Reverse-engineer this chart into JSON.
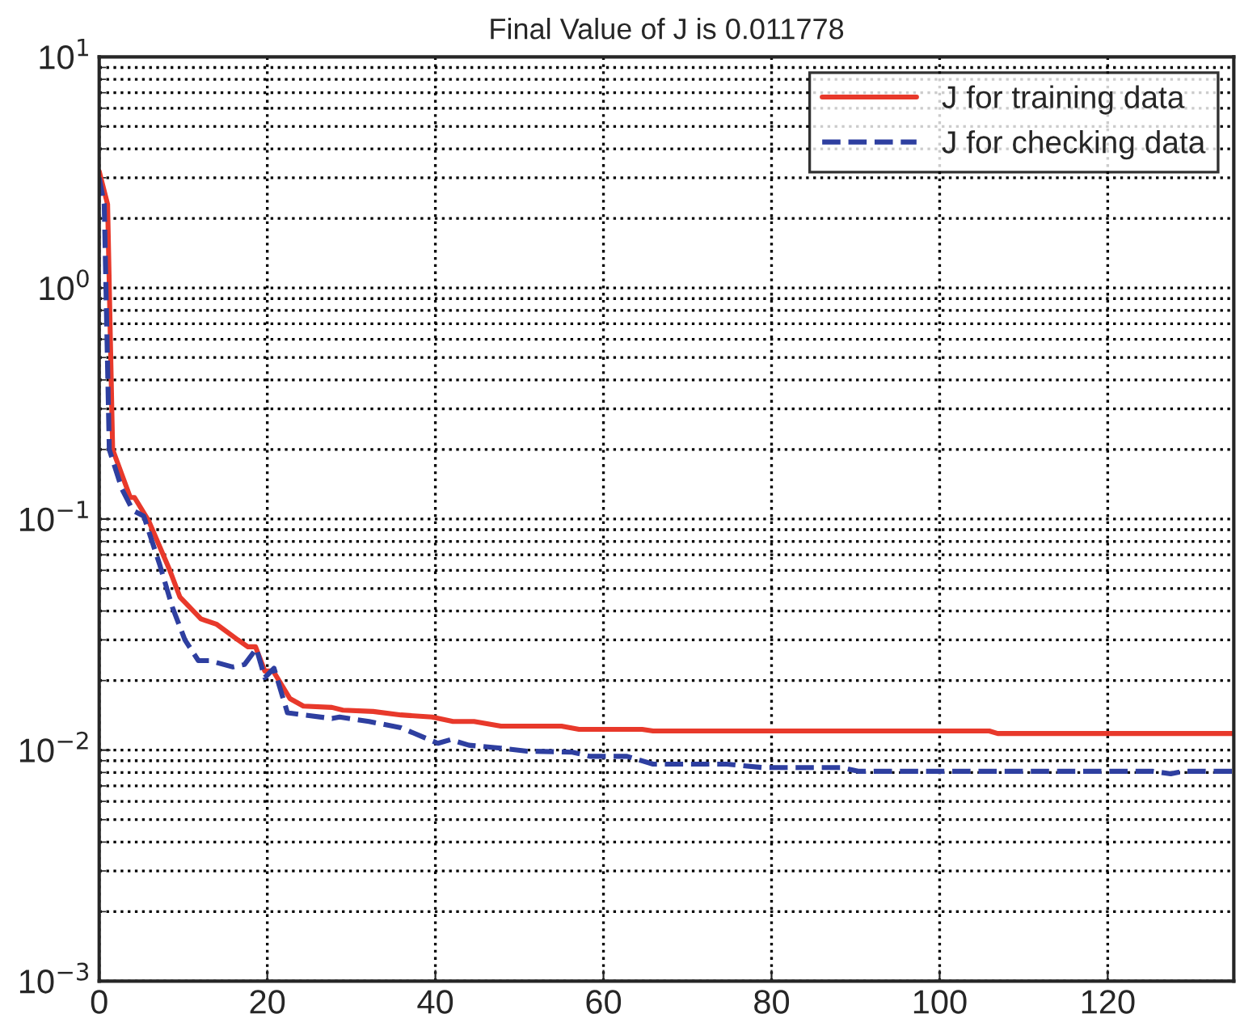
{
  "chart_data": {
    "type": "line",
    "title": "Final Value of J is 0.011778",
    "log": "y",
    "grid": true,
    "legend": "top right",
    "xlim": [
      0,
      135
    ],
    "xticks": [
      0,
      20,
      40,
      60,
      80,
      100,
      120
    ],
    "ylim": [
      0.001,
      10
    ],
    "yticks": [
      {
        "value": 0.001,
        "label": "10$^{−3}$"
      },
      {
        "value": 0.01,
        "label": "10$^{−2}$"
      },
      {
        "value": 0.1,
        "label": "10$^{−1}$"
      },
      {
        "value": 1,
        "label": "10$^{0}$"
      },
      {
        "value": 10,
        "label": "10$^{1}$"
      }
    ],
    "series": [
      {
        "name": "J for training data",
        "color": "#e8392b",
        "line_style": "solid",
        "x": [
          0,
          1,
          1.6,
          3.7,
          4.2,
          5.9,
          8.4,
          9.6,
          12.1,
          14,
          16.5,
          17.7,
          18.6,
          19.7,
          20.7,
          22.7,
          24.3,
          27.7,
          29,
          32.6,
          35.9,
          39.6,
          42.1,
          44.6,
          47.8,
          55,
          57.1,
          64.6,
          65.9,
          105.9,
          106.9,
          135
        ],
        "values": [
          3.2,
          2.3,
          0.2,
          0.124,
          0.124,
          0.098,
          0.06,
          0.046,
          0.037,
          0.035,
          0.03,
          0.028,
          0.028,
          0.022,
          0.022,
          0.0167,
          0.0155,
          0.0153,
          0.0149,
          0.0147,
          0.0142,
          0.0139,
          0.0133,
          0.0133,
          0.0127,
          0.0127,
          0.0123,
          0.0123,
          0.0121,
          0.0121,
          0.0118,
          0.0118
        ]
      },
      {
        "name": "J for checking data",
        "color": "#2e3fa0",
        "line_style": "dashed",
        "x": [
          0,
          0.6,
          1.2,
          2.7,
          4.0,
          5.3,
          7.2,
          8.7,
          10.2,
          11.8,
          13.1,
          15.9,
          17.3,
          18.7,
          19.7,
          20.8,
          22.4,
          27.7,
          28.6,
          32.1,
          35.9,
          40.3,
          41.8,
          44,
          47.8,
          50.9,
          56.3,
          58.4,
          62.8,
          65.9,
          74.7,
          79,
          88.4,
          90.3,
          125.3,
          127.5,
          129,
          135
        ],
        "values": [
          3.0,
          2.3,
          0.2,
          0.135,
          0.109,
          0.103,
          0.0635,
          0.0416,
          0.03,
          0.0244,
          0.0244,
          0.0229,
          0.0235,
          0.0275,
          0.0206,
          0.0226,
          0.0145,
          0.0137,
          0.0139,
          0.0133,
          0.0125,
          0.0107,
          0.0111,
          0.0105,
          0.0102,
          0.0099,
          0.0098,
          0.0094,
          0.0094,
          0.0087,
          0.0087,
          0.0084,
          0.0084,
          0.0081,
          0.0081,
          0.0079,
          0.0081,
          0.0081
        ]
      }
    ]
  }
}
